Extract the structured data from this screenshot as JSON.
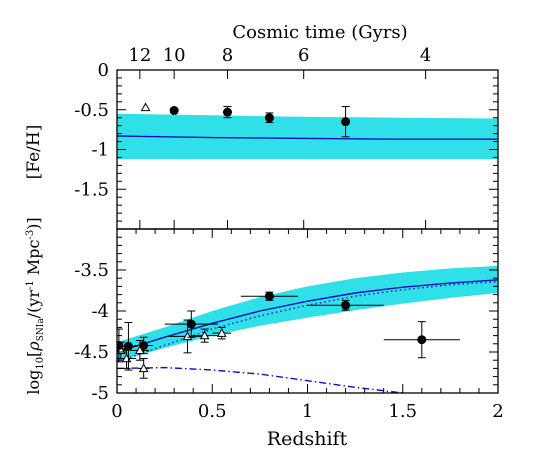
{
  "chart_data": [
    {
      "type": "scatter",
      "panel": "top",
      "top_axis_label": "Cosmic time (Gyrs)",
      "top_tick_labels": [
        "12",
        "10",
        "8",
        "6",
        "4"
      ],
      "top_tick_redshift": [
        0.12,
        0.3,
        0.58,
        0.98,
        1.62
      ],
      "ylabel": "[Fe/H]",
      "y_tick_labels": [
        "0",
        "-0.5",
        "-1",
        "-1.5"
      ],
      "y_tick_values": [
        0,
        -0.5,
        -1,
        -1.5
      ],
      "xlim": [
        0,
        2
      ],
      "ylim": [
        -2,
        0
      ],
      "band": {
        "color": "#30e0e8",
        "x": [
          0,
          0.5,
          1.0,
          1.5,
          2.0
        ],
        "lower": [
          -1.12,
          -1.12,
          -1.12,
          -1.12,
          -1.12
        ],
        "upper": [
          -0.55,
          -0.57,
          -0.59,
          -0.6,
          -0.61
        ]
      },
      "model_line": {
        "color": "#1010c0",
        "x": [
          0,
          0.5,
          1.0,
          1.5,
          2.0
        ],
        "y": [
          -0.83,
          -0.85,
          -0.86,
          -0.87,
          -0.87
        ]
      },
      "points": [
        {
          "x": 0.3,
          "y": -0.51,
          "yerr": 0.03
        },
        {
          "x": 0.58,
          "y": -0.53,
          "yerr": 0.07
        },
        {
          "x": 0.8,
          "y": -0.6,
          "yerr": 0.06
        },
        {
          "x": 1.2,
          "y": -0.65,
          "yerr": 0.19
        }
      ],
      "triangles": [
        {
          "x": 0.15,
          "y": -0.47
        }
      ]
    },
    {
      "type": "scatter",
      "panel": "bottom",
      "xlabel": "Redshift",
      "ylabel": "log10[ρSNIa/(yr-1 Mpc-3)]",
      "ylabel_parts": {
        "log": "log",
        "log_sub": "10",
        "open": "[",
        "rho": "ρ",
        "rho_sub": "SNIa",
        "mid": "/(yr",
        "sup1": "-1",
        "mpc": " Mpc",
        "sup2": "-3",
        "close": ")]"
      },
      "x_tick_labels": [
        "0",
        "0.5",
        "1",
        "1.5",
        "2"
      ],
      "x_tick_values": [
        0,
        0.5,
        1,
        1.5,
        2
      ],
      "y_tick_labels": [
        "-3.5",
        "-4",
        "-4.5",
        "-5"
      ],
      "y_tick_values": [
        -3.5,
        -4,
        -4.5,
        -5
      ],
      "xlim": [
        0,
        2
      ],
      "ylim": [
        -5,
        -3
      ],
      "band": {
        "color": "#30e0e8",
        "x": [
          0,
          0.25,
          0.5,
          0.75,
          1.0,
          1.25,
          1.5,
          1.75,
          2.0
        ],
        "lower": [
          -4.62,
          -4.45,
          -4.3,
          -4.18,
          -4.08,
          -3.99,
          -3.91,
          -3.84,
          -3.78
        ],
        "upper": [
          -4.38,
          -4.2,
          -4.0,
          -3.83,
          -3.7,
          -3.6,
          -3.53,
          -3.48,
          -3.45
        ]
      },
      "model_line": {
        "color": "#1010c0",
        "x": [
          0,
          0.25,
          0.5,
          0.75,
          1.0,
          1.25,
          1.5,
          1.75,
          2.0
        ],
        "y": [
          -4.5,
          -4.32,
          -4.15,
          -4.0,
          -3.88,
          -3.78,
          -3.71,
          -3.66,
          -3.62
        ]
      },
      "dotted_line": {
        "color": "#1010c0",
        "x": [
          0,
          0.25,
          0.5,
          0.75,
          1.0,
          1.25,
          1.5,
          1.75,
          2.0
        ],
        "y": [
          -4.62,
          -4.42,
          -4.22,
          -4.06,
          -3.93,
          -3.82,
          -3.74,
          -3.68,
          -3.64
        ]
      },
      "dashdot_line": {
        "color": "#1010c0",
        "x": [
          0,
          0.25,
          0.5,
          0.75,
          1.0,
          1.25,
          1.5
        ],
        "y": [
          -4.7,
          -4.69,
          -4.72,
          -4.77,
          -4.85,
          -4.93,
          -5.0
        ]
      },
      "points": [
        {
          "x": 0.01,
          "y": -4.42,
          "xerr": 0.02,
          "yerr": 0.2
        },
        {
          "x": 0.06,
          "y": -4.43,
          "xerr": 0.05,
          "yerr": 0.29
        },
        {
          "x": 0.14,
          "y": -4.42,
          "xerr": 0.05,
          "yerr": 0.1
        },
        {
          "x": 0.39,
          "y": -4.16,
          "xerr": 0.14,
          "yerr": 0.16
        },
        {
          "x": 0.8,
          "y": -3.82,
          "xerr": 0.15,
          "yerr": 0.05
        },
        {
          "x": 1.2,
          "y": -3.93,
          "xerr": 0.2,
          "yerr": 0.06
        },
        {
          "x": 1.6,
          "y": -4.35,
          "xerr": 0.2,
          "yerr": 0.22
        }
      ],
      "triangles": [
        {
          "x": 0.02,
          "y": -4.48,
          "xerr": 0.03,
          "yerr": 0.1
        },
        {
          "x": 0.05,
          "y": -4.58,
          "xerr": 0.05,
          "yerr": 0.12
        },
        {
          "x": 0.12,
          "y": -4.48,
          "xerr": 0.05,
          "yerr": 0.12
        },
        {
          "x": 0.14,
          "y": -4.7,
          "xerr": 0.03,
          "yerr": 0.12
        },
        {
          "x": 0.37,
          "y": -4.31,
          "xerr": 0.1,
          "yerr": 0.2
        },
        {
          "x": 0.46,
          "y": -4.3,
          "xerr": 0.07,
          "yerr": 0.08
        },
        {
          "x": 0.55,
          "y": -4.27,
          "xerr": 0.05,
          "yerr": 0.07
        }
      ]
    }
  ]
}
